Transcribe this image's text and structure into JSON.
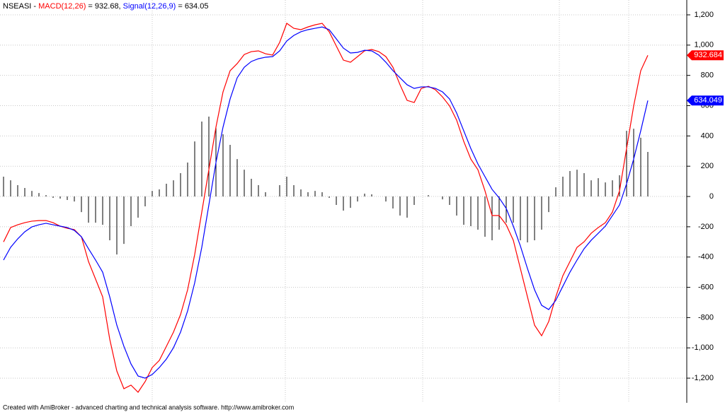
{
  "chart_data": {
    "type": "line",
    "title_parts": [
      "NSEASI - ",
      " = 932.68, ",
      " = 634.05"
    ],
    "footer": "Created with AmiBroker - advanced charting and technical analysis software. http://www.amibroker.com",
    "ylim": [
      -1363,
      1298
    ],
    "yticks": [
      {
        "value": -1200,
        "label": "-1,200"
      },
      {
        "value": -1000,
        "label": "-1,000"
      },
      -800,
      -600,
      -400,
      -200,
      0,
      200,
      400,
      600,
      800,
      {
        "value": 1000,
        "label": "1,000"
      },
      {
        "value": 1200,
        "label": "1,200"
      }
    ],
    "grid": true,
    "series": [
      {
        "name": "MACD(12,26)",
        "type": "line",
        "color": "#ff0000",
        "value_tag": "932.684",
        "values": [
          -300,
          -205,
          -187,
          -173,
          -163,
          -159,
          -159,
          -173,
          -196,
          -210,
          -219,
          -266,
          -430,
          -546,
          -663,
          -943,
          -1153,
          -1270,
          -1246,
          -1293,
          -1223,
          -1130,
          -1083,
          -990,
          -896,
          -780,
          -616,
          -383,
          -103,
          177,
          458,
          691,
          831,
          878,
          938,
          957,
          962,
          943,
          934,
          1018,
          1144,
          1111,
          1102,
          1120,
          1134,
          1144,
          1088,
          994,
          901,
          887,
          924,
          962,
          971,
          957,
          924,
          854,
          738,
          635,
          621,
          714,
          728,
          705,
          658,
          598,
          504,
          364,
          247,
          177,
          37,
          -126,
          -126,
          -187,
          -289,
          -476,
          -663,
          -850,
          -920,
          -826,
          -663,
          -523,
          -430,
          -336,
          -299,
          -243,
          -205,
          -173,
          -103,
          37,
          317,
          598,
          831,
          932.68
        ]
      },
      {
        "name": "Signal(12,26,9)",
        "type": "line",
        "color": "#0000ff",
        "value_tag": "634.049",
        "values": [
          -420,
          -336,
          -280,
          -233,
          -201,
          -187,
          -177,
          -187,
          -196,
          -205,
          -224,
          -266,
          -345,
          -420,
          -500,
          -663,
          -850,
          -990,
          -1106,
          -1186,
          -1200,
          -1176,
          -1130,
          -1074,
          -999,
          -896,
          -756,
          -570,
          -336,
          -56,
          224,
          458,
          644,
          784,
          854,
          892,
          910,
          920,
          924,
          962,
          1027,
          1064,
          1088,
          1102,
          1111,
          1120,
          1102,
          1041,
          980,
          948,
          952,
          966,
          962,
          934,
          887,
          831,
          784,
          738,
          714,
          724,
          724,
          714,
          691,
          644,
          551,
          434,
          317,
          215,
          131,
          47,
          -9,
          -79,
          -196,
          -327,
          -476,
          -616,
          -719,
          -747,
          -686,
          -593,
          -500,
          -420,
          -345,
          -289,
          -243,
          -196,
          -126,
          -56,
          84,
          247,
          434,
          634.05
        ]
      },
      {
        "type": "bar",
        "color": "#000000",
        "values": [
          131,
          107,
          75,
          56,
          37,
          23,
          9,
          -9,
          -14,
          -23,
          -33,
          -103,
          -173,
          -173,
          -187,
          -289,
          -383,
          -313,
          -196,
          -140,
          -65,
          37,
          47,
          84,
          107,
          154,
          224,
          364,
          495,
          528,
          458,
          411,
          341,
          247,
          177,
          117,
          75,
          28,
          0,
          75,
          131,
          75,
          47,
          28,
          37,
          28,
          -9,
          -56,
          -93,
          -75,
          -33,
          19,
          14,
          0,
          -33,
          -79,
          -126,
          -140,
          -56,
          0,
          9,
          0,
          -19,
          -56,
          -126,
          -187,
          -196,
          -219,
          -266,
          -289,
          -219,
          -173,
          -173,
          -289,
          -303,
          -289,
          -219,
          -103,
          61,
          131,
          168,
          177,
          154,
          107,
          121,
          93,
          107,
          140,
          434,
          448,
          388,
          294
        ]
      }
    ]
  }
}
